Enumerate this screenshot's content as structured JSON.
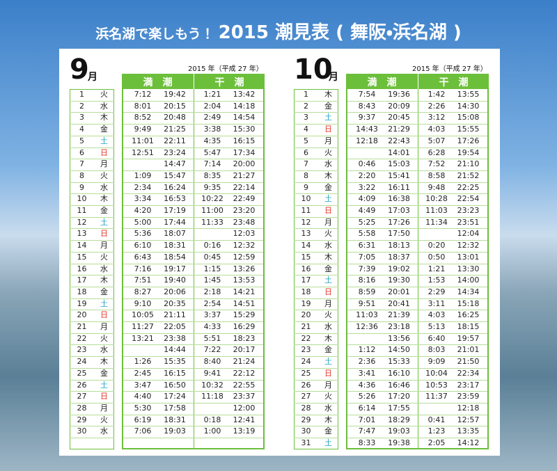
{
  "title_lead": "浜名湖で楽しもう！",
  "title_main": "2015 潮見表 ( 舞阪・浜名湖 )",
  "weekday_colors": {
    "土": "#1fa3c4",
    "日": "#e3372c"
  },
  "months": [
    {
      "month": 9,
      "month_unit": "月",
      "year_note": "2015 年（平成 27 年）",
      "high_tide_header": "満　潮",
      "low_tide_header": "干　潮",
      "rows": [
        [
          1,
          "火",
          "7:12",
          "19:42",
          "1:21",
          "13:42"
        ],
        [
          2,
          "水",
          "8:01",
          "20:15",
          "2:04",
          "14:18"
        ],
        [
          3,
          "木",
          "8:52",
          "20:48",
          "2:49",
          "14:54"
        ],
        [
          4,
          "金",
          "9:49",
          "21:25",
          "3:38",
          "15:30"
        ],
        [
          5,
          "土",
          "11:01",
          "22:11",
          "4:35",
          "16:15"
        ],
        [
          6,
          "日",
          "12:51",
          "23:24",
          "5:47",
          "17:34"
        ],
        [
          7,
          "月",
          null,
          "14:47",
          "7:14",
          "20:00"
        ],
        [
          8,
          "火",
          "1:09",
          "15:47",
          "8:35",
          "21:27"
        ],
        [
          9,
          "水",
          "2:34",
          "16:24",
          "9:35",
          "22:14"
        ],
        [
          10,
          "木",
          "3:34",
          "16:53",
          "10:22",
          "22:49"
        ],
        [
          11,
          "金",
          "4:20",
          "17:19",
          "11:00",
          "23:20"
        ],
        [
          12,
          "土",
          "5:00",
          "17:44",
          "11:33",
          "23:48"
        ],
        [
          13,
          "日",
          "5:36",
          "18:07",
          null,
          "12:03"
        ],
        [
          14,
          "月",
          "6:10",
          "18:31",
          "0:16",
          "12:32"
        ],
        [
          15,
          "火",
          "6:43",
          "18:54",
          "0:45",
          "12:59"
        ],
        [
          16,
          "水",
          "7:16",
          "19:17",
          "1:15",
          "13:26"
        ],
        [
          17,
          "木",
          "7:51",
          "19:40",
          "1:45",
          "13:53"
        ],
        [
          18,
          "金",
          "8:27",
          "20:06",
          "2:18",
          "14:21"
        ],
        [
          19,
          "土",
          "9:10",
          "20:35",
          "2:54",
          "14:51"
        ],
        [
          20,
          "日",
          "10:05",
          "21:11",
          "3:37",
          "15:29"
        ],
        [
          21,
          "月",
          "11:27",
          "22:05",
          "4:33",
          "16:29"
        ],
        [
          22,
          "火",
          "13:21",
          "23:38",
          "5:51",
          "18:23"
        ],
        [
          23,
          "水",
          null,
          "14:44",
          "7:22",
          "20:17"
        ],
        [
          24,
          "木",
          "1:26",
          "15:35",
          "8:40",
          "21:24"
        ],
        [
          25,
          "金",
          "2:45",
          "16:15",
          "9:41",
          "22:12"
        ],
        [
          26,
          "土",
          "3:47",
          "16:50",
          "10:32",
          "22:55"
        ],
        [
          27,
          "日",
          "4:40",
          "17:24",
          "11:18",
          "23:37"
        ],
        [
          28,
          "月",
          "5:30",
          "17:58",
          null,
          "12:00"
        ],
        [
          29,
          "火",
          "6:19",
          "18:31",
          "0:18",
          "12:41"
        ],
        [
          30,
          "水",
          "7:06",
          "19:03",
          "1:00",
          "13:19"
        ]
      ]
    },
    {
      "month": 10,
      "month_unit": "月",
      "year_note": "2015 年（平成 27 年）",
      "high_tide_header": "満　潮",
      "low_tide_header": "干　潮",
      "rows": [
        [
          1,
          "木",
          "7:54",
          "19:36",
          "1:42",
          "13:55"
        ],
        [
          2,
          "金",
          "8:43",
          "20:09",
          "2:26",
          "14:30"
        ],
        [
          3,
          "土",
          "9:37",
          "20:45",
          "3:12",
          "15:08"
        ],
        [
          4,
          "日",
          "14:43",
          "21:29",
          "4:03",
          "15:55"
        ],
        [
          5,
          "月",
          "12:18",
          "22:43",
          "5:07",
          "17:26"
        ],
        [
          6,
          "火",
          null,
          "14:01",
          "6:28",
          "19:54"
        ],
        [
          7,
          "水",
          "0:46",
          "15:03",
          "7:52",
          "21:10"
        ],
        [
          8,
          "木",
          "2:20",
          "15:41",
          "8:58",
          "21:52"
        ],
        [
          9,
          "金",
          "3:22",
          "16:11",
          "9:48",
          "22:25"
        ],
        [
          10,
          "土",
          "4:09",
          "16:38",
          "10:28",
          "22:54"
        ],
        [
          11,
          "日",
          "4:49",
          "17:03",
          "11:03",
          "23:23"
        ],
        [
          12,
          "月",
          "5:25",
          "17:26",
          "11:34",
          "23:51"
        ],
        [
          13,
          "火",
          "5:58",
          "17:50",
          null,
          "12:04"
        ],
        [
          14,
          "水",
          "6:31",
          "18:13",
          "0:20",
          "12:32"
        ],
        [
          15,
          "木",
          "7:05",
          "18:37",
          "0:50",
          "13:01"
        ],
        [
          16,
          "金",
          "7:39",
          "19:02",
          "1:21",
          "13:30"
        ],
        [
          17,
          "土",
          "8:16",
          "19:30",
          "1:53",
          "14:00"
        ],
        [
          18,
          "日",
          "8:59",
          "20:01",
          "2:29",
          "14:34"
        ],
        [
          19,
          "月",
          "9:51",
          "20:41",
          "3:11",
          "15:18"
        ],
        [
          20,
          "火",
          "11:03",
          "21:39",
          "4:03",
          "16:25"
        ],
        [
          21,
          "水",
          "12:36",
          "23:18",
          "5:13",
          "18:15"
        ],
        [
          22,
          "木",
          null,
          "13:56",
          "6:40",
          "19:57"
        ],
        [
          23,
          "金",
          "1:12",
          "14:50",
          "8:03",
          "21:01"
        ],
        [
          24,
          "土",
          "2:36",
          "15:33",
          "9:09",
          "21:50"
        ],
        [
          25,
          "日",
          "3:41",
          "16:10",
          "10:04",
          "22:34"
        ],
        [
          26,
          "月",
          "4:36",
          "16:46",
          "10:53",
          "23:17"
        ],
        [
          27,
          "火",
          "5:26",
          "17:20",
          "11:37",
          "23:59"
        ],
        [
          28,
          "水",
          "6:14",
          "17:55",
          null,
          "12:18"
        ],
        [
          29,
          "木",
          "7:01",
          "18:29",
          "0:41",
          "12:57"
        ],
        [
          30,
          "金",
          "7:47",
          "19:03",
          "1:23",
          "13:35"
        ],
        [
          31,
          "土",
          "8:33",
          "19:38",
          "2:05",
          "14:12"
        ]
      ]
    }
  ]
}
